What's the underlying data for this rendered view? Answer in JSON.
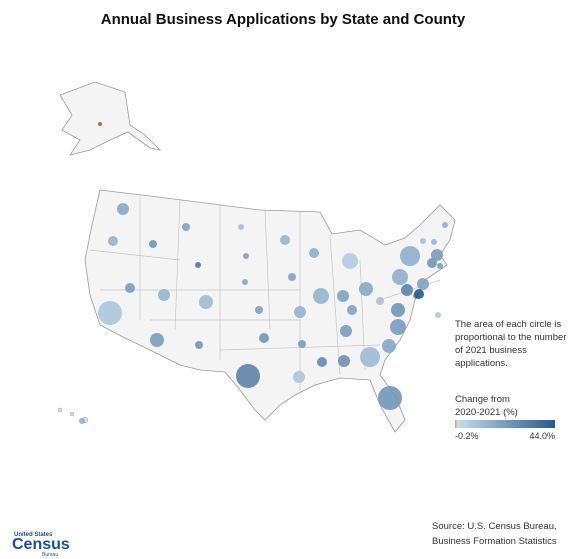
{
  "title": "Annual Business Applications by State and County",
  "note": "The area of each circle is proportional to the number of 2021 business applications.",
  "legend": {
    "title": "Change from 2020-2021 (%)",
    "colors": [
      "#c9def0",
      "#2b5a8a"
    ],
    "scale": [
      {
        "value": -0.2,
        "label": "-0.2%"
      },
      {
        "value": 44.0,
        "label": "44.0%"
      }
    ]
  },
  "source": [
    "Source: U.S. Census Bureau,",
    "Business Formation Statistics"
  ],
  "logo": {
    "top": "United States",
    "main": "Census",
    "bottom": "Bureau"
  },
  "bubbles": [
    {
      "applications": 128000,
      "change": 18
    },
    {
      "applications": 89000,
      "change": 14
    },
    {
      "applications": 510000,
      "change": 8
    },
    {
      "applications": 89000,
      "change": 22
    },
    {
      "applications": 57000,
      "change": 24
    },
    {
      "applications": 57000,
      "change": 20
    },
    {
      "applications": 32000,
      "change": 34
    },
    {
      "applications": 128000,
      "change": 14
    },
    {
      "applications": 174000,
      "change": 22
    },
    {
      "applications": 174000,
      "change": 12
    },
    {
      "applications": 57000,
      "change": 24
    },
    {
      "applications": 32000,
      "change": 10
    },
    {
      "applications": 32000,
      "change": 20
    },
    {
      "applications": 32000,
      "change": 18
    },
    {
      "applications": 57000,
      "change": 20
    },
    {
      "applications": 89000,
      "change": 24
    },
    {
      "applications": 510000,
      "change": 30
    },
    {
      "applications": 89000,
      "change": 14
    },
    {
      "applications": 57000,
      "change": 20
    },
    {
      "applications": 128000,
      "change": 14
    },
    {
      "applications": 57000,
      "change": 22
    },
    {
      "applications": 128000,
      "change": 8
    },
    {
      "applications": 89000,
      "change": 16
    },
    {
      "applications": 227000,
      "change": 14
    },
    {
      "applications": 227000,
      "change": 6
    },
    {
      "applications": 128000,
      "change": 20
    },
    {
      "applications": 174000,
      "change": 18
    },
    {
      "applications": 89000,
      "change": 20
    },
    {
      "applications": 128000,
      "change": 22
    },
    {
      "applications": 89000,
      "change": 28
    },
    {
      "applications": 128000,
      "change": 26
    },
    {
      "applications": 354000,
      "change": 12
    },
    {
      "applications": 510000,
      "change": 24
    },
    {
      "applications": 174000,
      "change": 18
    },
    {
      "applications": 227000,
      "change": 22
    },
    {
      "applications": 174000,
      "change": 24
    },
    {
      "applications": 57000,
      "change": 10
    },
    {
      "applications": 227000,
      "change": 16
    },
    {
      "applications": 354000,
      "change": 16
    },
    {
      "applications": 128000,
      "change": 30
    },
    {
      "applications": 32000,
      "change": 22
    },
    {
      "applications": 128000,
      "change": 20
    },
    {
      "applications": 89000,
      "change": 44
    },
    {
      "applications": 89000,
      "change": 24
    },
    {
      "applications": 128000,
      "change": 22
    },
    {
      "applications": 32000,
      "change": 10
    },
    {
      "applications": 32000,
      "change": 14
    },
    {
      "applications": 32000,
      "change": 16
    },
    {
      "applications": 32000,
      "change": 22
    },
    {
      "applications": 14000,
      "change": -0.2
    },
    {
      "applications": 32000,
      "change": 16
    },
    {
      "applications": 32000,
      "change": 8
    }
  ]
}
